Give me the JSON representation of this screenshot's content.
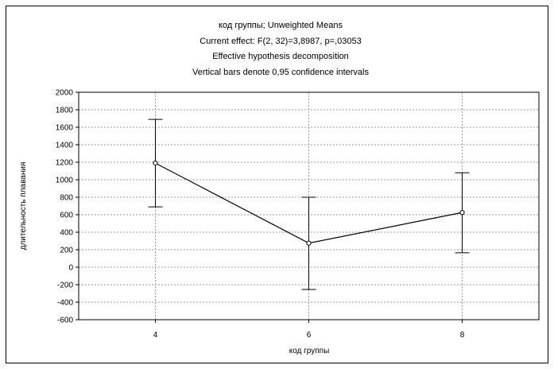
{
  "chart_data": {
    "type": "line",
    "title_lines": [
      "код группы; Unweighted Means",
      "Current effect: F(2, 32)=3,8987, p=,03053",
      "Effective hypothesis decomposition",
      "Vertical bars denote 0,95 confidence intervals"
    ],
    "xlabel": "код группы",
    "ylabel": "длительность плавания",
    "categories": [
      "4",
      "6",
      "8"
    ],
    "series": [
      {
        "values": [
          1190,
          275,
          625
        ],
        "lower": [
          690,
          -255,
          165
        ],
        "upper": [
          1690,
          800,
          1080
        ]
      }
    ],
    "ylim": [
      -600,
      2000
    ],
    "yticks": [
      "2000",
      "1800",
      "1600",
      "1400",
      "1200",
      "1000",
      "800",
      "600",
      "400",
      "200",
      "0",
      "-200",
      "-400",
      "-600"
    ],
    "grid": true,
    "colors": {
      "line": "#000000",
      "grid": "#9a9a9a"
    }
  }
}
